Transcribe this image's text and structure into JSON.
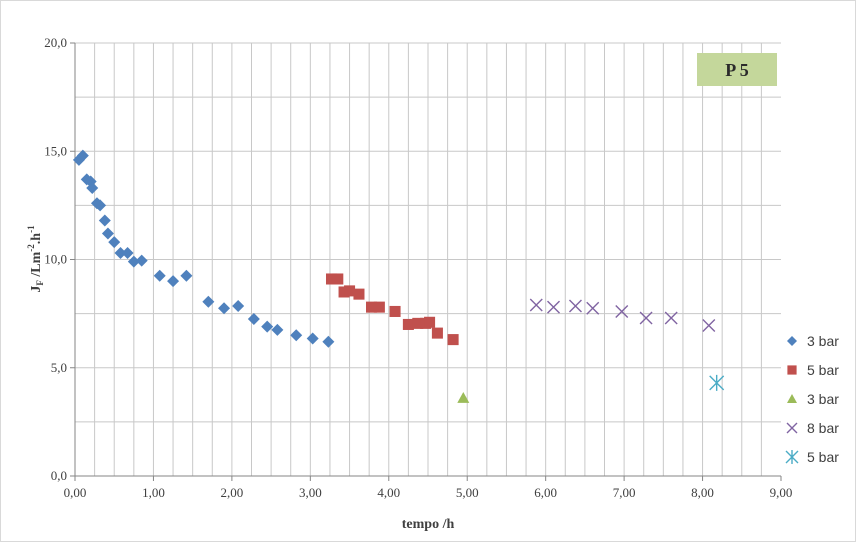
{
  "chart_data": {
    "type": "scatter",
    "xlabel": "tempo /h",
    "ylabel": "J_F /Lm^-2.h^-1",
    "ylabel_parts": {
      "main": "J",
      "sub": "F",
      "mid": " /Lm",
      "sup1": "-2",
      "mid2": ".h",
      "sup2": "-1"
    },
    "xlim": [
      0,
      9
    ],
    "ylim": [
      0,
      20
    ],
    "xticks": [
      "0,00",
      "1,00",
      "2,00",
      "3,00",
      "4,00",
      "5,00",
      "6,00",
      "7,00",
      "8,00",
      "9,00"
    ],
    "yticks": [
      "0,0",
      "5,0",
      "10,0",
      "15,0",
      "20,0"
    ],
    "grid": true,
    "legend_position": "right",
    "badge": {
      "text": "P 5",
      "color": "#c4d79b"
    },
    "series": [
      {
        "name": "3 bar",
        "marker": "diamond",
        "color": "#4f81bd",
        "x": [
          0.05,
          0.1,
          0.15,
          0.2,
          0.22,
          0.28,
          0.32,
          0.38,
          0.42,
          0.5,
          0.58,
          0.67,
          0.75,
          0.85,
          1.08,
          1.25,
          1.42,
          1.7,
          1.9,
          2.08,
          2.28,
          2.45,
          2.58,
          2.82,
          3.03,
          3.23
        ],
        "y": [
          14.6,
          14.8,
          13.7,
          13.6,
          13.3,
          12.6,
          12.5,
          11.8,
          11.2,
          10.8,
          10.3,
          10.3,
          9.9,
          9.95,
          9.25,
          9.0,
          9.25,
          8.05,
          7.75,
          7.85,
          7.25,
          6.9,
          6.75,
          6.5,
          6.35,
          6.2
        ]
      },
      {
        "name": "5 bar",
        "marker": "square",
        "color": "#c0504d",
        "x": [
          3.27,
          3.35,
          3.43,
          3.5,
          3.62,
          3.78,
          3.88,
          4.08,
          4.25,
          4.37,
          4.47,
          4.52,
          4.62,
          4.82
        ],
        "y": [
          9.1,
          9.1,
          8.5,
          8.55,
          8.4,
          7.8,
          7.8,
          7.6,
          7.0,
          7.05,
          7.05,
          7.1,
          6.6,
          6.3
        ]
      },
      {
        "name": "3 bar",
        "marker": "triangle",
        "color": "#9bbb59",
        "x": [
          4.95
        ],
        "y": [
          3.6
        ]
      },
      {
        "name": "8 bar",
        "marker": "x",
        "color": "#8064a2",
        "x": [
          5.88,
          6.1,
          6.38,
          6.6,
          6.97,
          7.28,
          7.6,
          8.08
        ],
        "y": [
          7.9,
          7.8,
          7.85,
          7.75,
          7.6,
          7.3,
          7.3,
          6.95
        ]
      },
      {
        "name": "5 bar",
        "marker": "star",
        "color": "#4bacc6",
        "x": [
          8.18
        ],
        "y": [
          4.3
        ]
      }
    ]
  }
}
